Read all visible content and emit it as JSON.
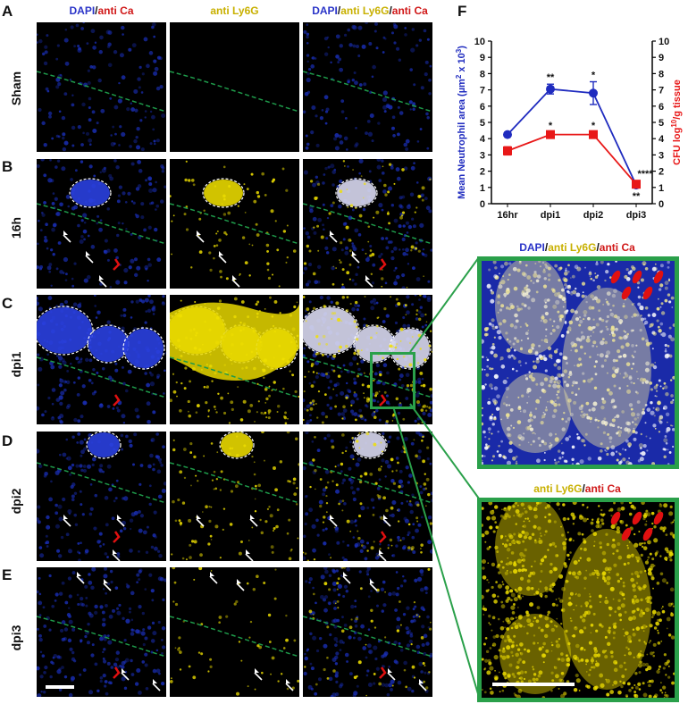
{
  "panel_labels": {
    "A": "A",
    "B": "B",
    "C": "C",
    "D": "D",
    "E": "E",
    "F": "F"
  },
  "row_labels": [
    "Sham",
    "16h",
    "dpi1",
    "dpi2",
    "dpi3"
  ],
  "column_headers": {
    "col1": {
      "a": "DAPI",
      "sep": "/",
      "b": "anti Ca"
    },
    "col2": {
      "a": "anti Ly6G"
    },
    "col3": {
      "a": "DAPI",
      "sep1": "/",
      "b": "anti Ly6G",
      "sep2": "/",
      "c": "anti Ca"
    }
  },
  "zoom_headers": {
    "top": {
      "a": "DAPI",
      "sep1": "/",
      "b": "anti Ly6G",
      "sep2": "/",
      "c": "anti Ca"
    },
    "bottom": {
      "a": "anti Ly6G",
      "sep": "/",
      "b": "anti Ca"
    }
  },
  "colors": {
    "dapi": "#2a34c8",
    "ly6g": "#e6d200",
    "ca": "#d01818",
    "zoom_box": "#2aa04a",
    "tissue_line": "#1e9a4a"
  },
  "chart_data": {
    "type": "line",
    "categories": [
      "16hr",
      "dpi1",
      "dpi2",
      "dpi3"
    ],
    "ylabel_left": {
      "main": "Mean Neutrophil area (µm",
      "sup1": "2",
      "mid": " x 10",
      "sup2": "3",
      "end": ")"
    },
    "ylabel_right": {
      "main": "CFU log",
      "sub": "10",
      "end": "/g tissue"
    },
    "ylim_left": [
      0,
      10
    ],
    "ylim_right": [
      0,
      10
    ],
    "yticks": [
      "0",
      "1",
      "2",
      "3",
      "4",
      "5",
      "6",
      "7",
      "8",
      "9",
      "10"
    ],
    "series": [
      {
        "name": "Mean Neutrophil area",
        "color": "#1f2bbf",
        "marker": "circle",
        "axis": "left",
        "values": [
          4.25,
          7.05,
          6.8,
          1.15
        ],
        "errors": [
          0,
          0.3,
          0.7,
          0.1
        ],
        "annotations": [
          "",
          "**",
          "*",
          "**"
        ]
      },
      {
        "name": "CFU",
        "color": "#e81818",
        "marker": "square",
        "axis": "right",
        "values": [
          3.25,
          4.25,
          4.25,
          1.2
        ],
        "errors": [
          0.25,
          0.15,
          0.15,
          0.1
        ],
        "annotations": [
          "",
          "*",
          "*",
          "****"
        ]
      }
    ]
  }
}
